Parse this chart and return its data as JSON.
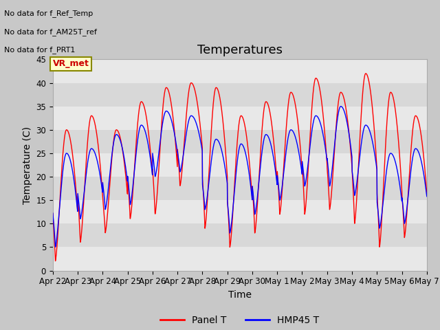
{
  "title": "Temperatures",
  "xlabel": "Time",
  "ylabel": "Temperature (C)",
  "ylim": [
    0,
    45
  ],
  "yticks": [
    0,
    5,
    10,
    15,
    20,
    25,
    30,
    35,
    40,
    45
  ],
  "line1_color": "#ff0000",
  "line1_label": "Panel T",
  "line2_color": "#0000ff",
  "line2_label": "HMP45 T",
  "no_data_texts": [
    "No data for f_Ref_Temp",
    "No data for f_AM25T_ref",
    "No data for f_PRT1"
  ],
  "vr_met_label": "VR_met",
  "xtick_labels": [
    "Apr 22",
    "Apr 23",
    "Apr 24",
    "Apr 25",
    "Apr 26",
    "Apr 27",
    "Apr 28",
    "Apr 29",
    "Apr 30",
    "May 1",
    "May 2",
    "May 3",
    "May 4",
    "May 5",
    "May 6",
    "May 7"
  ],
  "num_days": 15,
  "panel_T_peaks": [
    30,
    33,
    30,
    36,
    39,
    40,
    39,
    33,
    36,
    38,
    41,
    38,
    42,
    38,
    33
  ],
  "panel_T_troughs": [
    2,
    6,
    8,
    11,
    12,
    18,
    9,
    5,
    8,
    12,
    12,
    13,
    10,
    5,
    7
  ],
  "hmp45_T_peaks": [
    25,
    26,
    29,
    31,
    34,
    33,
    28,
    27,
    29,
    30,
    33,
    35,
    31,
    25,
    26
  ],
  "hmp45_T_troughs": [
    5,
    11,
    13,
    14,
    20,
    21,
    13,
    8,
    12,
    15,
    18,
    18,
    16,
    9,
    10
  ],
  "title_fontsize": 13,
  "axis_label_fontsize": 10,
  "tick_fontsize": 8.5,
  "legend_fontsize": 10,
  "band_colors": [
    "#e8e8e8",
    "#d8d8d8"
  ],
  "fig_facecolor": "#c8c8c8",
  "axes_facecolor": "#e0e0e0"
}
